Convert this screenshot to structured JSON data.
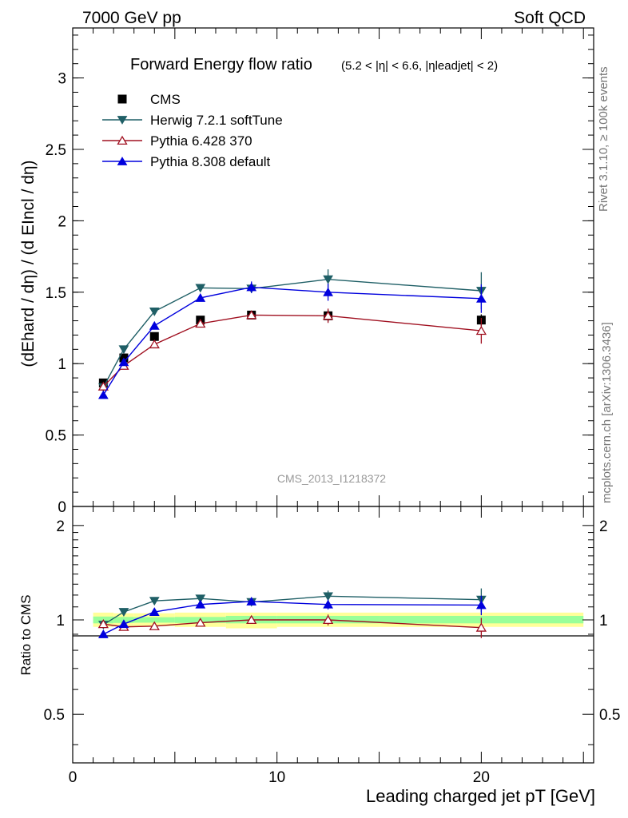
{
  "header": {
    "left": "7000 GeV pp",
    "right": "Soft QCD"
  },
  "side_labels": {
    "rivet": "Rivet 3.1.10, ≥ 100k events",
    "mcplots": "mcplots.cern.ch [arXiv:1306.3436]"
  },
  "chart_data": [
    {
      "type": "scatter",
      "title": "Forward Energy flow ratio",
      "subtitle": "(5.2 < |η| < 6.6, |ηleadjet| < 2)",
      "ylabel": "(dEhard / dη) / (d EIncl / dη)",
      "xlabel": "Leading charged jet pT [GeV]",
      "watermark": "CMS_2013_I1218372",
      "xlim": [
        0,
        25.5
      ],
      "ylim": [
        0,
        3.35
      ],
      "yticks": [
        0,
        0.5,
        1,
        1.5,
        2,
        2.5,
        3
      ],
      "xticks": [
        0,
        10,
        20
      ],
      "legend_position": "top-left",
      "grid": false,
      "series": [
        {
          "name": "CMS",
          "color": "#000000",
          "marker": "square",
          "x": [
            1.5,
            2.5,
            4.0,
            6.25,
            8.75,
            12.5,
            20.0
          ],
          "y": [
            0.865,
            1.04,
            1.19,
            1.305,
            1.34,
            1.335,
            1.305
          ],
          "err": [
            0.02,
            0.02,
            0.02,
            0.02,
            0.03,
            0.04,
            0.04
          ]
        },
        {
          "name": "Herwig 7.2.1 softTune",
          "color": "#1f5f66",
          "marker": "triangle-down",
          "x": [
            1.5,
            2.5,
            4.0,
            6.25,
            8.75,
            12.5,
            20.0
          ],
          "y": [
            0.835,
            1.1,
            1.365,
            1.53,
            1.525,
            1.59,
            1.51
          ],
          "err": [
            0.01,
            0.01,
            0.015,
            0.02,
            0.03,
            0.07,
            0.13
          ]
        },
        {
          "name": "Pythia 6.428 370",
          "color": "#a01020",
          "marker": "triangle-up-open",
          "x": [
            1.5,
            2.5,
            4.0,
            6.25,
            8.75,
            12.5,
            20.0
          ],
          "y": [
            0.84,
            0.985,
            1.135,
            1.28,
            1.34,
            1.335,
            1.23
          ],
          "err": [
            0.01,
            0.01,
            0.015,
            0.02,
            0.03,
            0.05,
            0.09
          ]
        },
        {
          "name": "Pythia 8.308 default",
          "color": "#0000dd",
          "marker": "triangle-up",
          "x": [
            1.5,
            2.5,
            4.0,
            6.25,
            8.75,
            12.5,
            20.0
          ],
          "y": [
            0.78,
            1.01,
            1.265,
            1.46,
            1.535,
            1.5,
            1.455
          ],
          "err": [
            0.01,
            0.01,
            0.015,
            0.02,
            0.04,
            0.06,
            0.1
          ]
        }
      ]
    },
    {
      "type": "scatter",
      "ylabel": "Ratio to CMS",
      "xlim": [
        0,
        25.5
      ],
      "ylim": [
        0.35,
        2.3
      ],
      "yticks": [
        0.5,
        1,
        2
      ],
      "scale": "log",
      "reference_line": 1,
      "bands": {
        "outer_color": "#ffff99",
        "inner_color": "#99ff99",
        "bins": [
          {
            "x0": 1.0,
            "x1": 2.0,
            "inner": [
              0.975,
              1.025
            ],
            "outer": [
              0.95,
              1.055
            ]
          },
          {
            "x0": 2.0,
            "x1": 3.0,
            "inner": [
              0.978,
              1.022
            ],
            "outer": [
              0.955,
              1.05
            ]
          },
          {
            "x0": 3.0,
            "x1": 5.0,
            "inner": [
              0.98,
              1.02
            ],
            "outer": [
              0.955,
              1.05
            ]
          },
          {
            "x0": 5.0,
            "x1": 7.5,
            "inner": [
              0.978,
              1.022
            ],
            "outer": [
              0.95,
              1.055
            ]
          },
          {
            "x0": 7.5,
            "x1": 10.0,
            "inner": [
              0.975,
              1.03
            ],
            "outer": [
              0.94,
              1.055
            ]
          },
          {
            "x0": 10.0,
            "x1": 15.0,
            "inner": [
              0.975,
              1.03
            ],
            "outer": [
              0.95,
              1.055
            ]
          },
          {
            "x0": 15.0,
            "x1": 25.0,
            "inner": [
              0.975,
              1.03
            ],
            "outer": [
              0.95,
              1.055
            ]
          }
        ]
      },
      "series": [
        {
          "name": "Herwig 7.2.1 softTune",
          "x": [
            1.5,
            2.5,
            4.0,
            6.25,
            8.75,
            12.5,
            20.0
          ],
          "y": [
            0.965,
            1.06,
            1.15,
            1.17,
            1.14,
            1.19,
            1.16
          ],
          "err": [
            0.01,
            0.01,
            0.01,
            0.01,
            0.02,
            0.05,
            0.1
          ]
        },
        {
          "name": "Pythia 6.428 370",
          "x": [
            1.5,
            2.5,
            4.0,
            6.25,
            8.75,
            12.5,
            20.0
          ],
          "y": [
            0.97,
            0.95,
            0.955,
            0.98,
            1.0,
            1.0,
            0.945
          ],
          "err": [
            0.01,
            0.01,
            0.01,
            0.01,
            0.02,
            0.04,
            0.07
          ]
        },
        {
          "name": "Pythia 8.308 default",
          "x": [
            1.5,
            2.5,
            4.0,
            6.25,
            8.75,
            12.5,
            20.0
          ],
          "y": [
            0.9,
            0.97,
            1.06,
            1.12,
            1.145,
            1.12,
            1.115
          ],
          "err": [
            0.01,
            0.01,
            0.01,
            0.01,
            0.03,
            0.04,
            0.08
          ]
        }
      ]
    }
  ]
}
